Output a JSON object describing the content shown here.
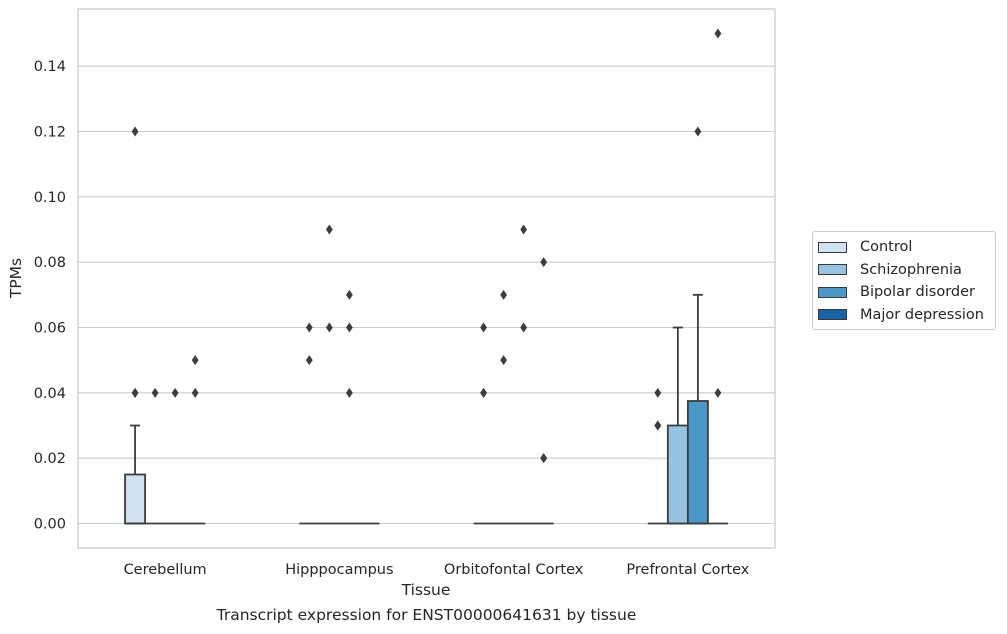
{
  "caption": "Transcript expression for ENST00000641631 by tissue",
  "chart_data": {
    "type": "box",
    "xlabel": "Tissue",
    "ylabel": "TPMs",
    "ylim": [
      -0.0075,
      0.1575
    ],
    "yticks": [
      0.0,
      0.02,
      0.04,
      0.06,
      0.08,
      0.1,
      0.12,
      0.14
    ],
    "ytick_labels": [
      "0.00",
      "0.02",
      "0.04",
      "0.06",
      "0.08",
      "0.10",
      "0.12",
      "0.14"
    ],
    "grid": true,
    "legend_position": "right",
    "categories": [
      "Cerebellum",
      "Hipppocampus",
      "Orbitofontal Cortex",
      "Prefrontal Cortex"
    ],
    "series": [
      {
        "name": "Control",
        "color": "#d0e1f2",
        "boxes": [
          {
            "q1": 0.0,
            "median": 0.0,
            "q3": 0.015,
            "whisker_low": 0.0,
            "whisker_high": 0.03,
            "outliers": [
              0.04,
              0.04,
              0.12
            ]
          },
          {
            "q1": 0.0,
            "median": 0.0,
            "q3": 0.0,
            "whisker_low": 0.0,
            "whisker_high": 0.0,
            "outliers": [
              0.05,
              0.06
            ]
          },
          {
            "q1": 0.0,
            "median": 0.0,
            "q3": 0.0,
            "whisker_low": 0.0,
            "whisker_high": 0.0,
            "outliers": [
              0.04,
              0.04,
              0.06
            ]
          },
          {
            "q1": 0.0,
            "median": 0.0,
            "q3": 0.0,
            "whisker_low": 0.0,
            "whisker_high": 0.0,
            "outliers": [
              0.03,
              0.03,
              0.04
            ]
          }
        ]
      },
      {
        "name": "Schizophrenia",
        "color": "#94c4df",
        "boxes": [
          {
            "q1": 0.0,
            "median": 0.0,
            "q3": 0.0,
            "whisker_low": 0.0,
            "whisker_high": 0.0,
            "outliers": [
              0.04
            ]
          },
          {
            "q1": 0.0,
            "median": 0.0,
            "q3": 0.0,
            "whisker_low": 0.0,
            "whisker_high": 0.0,
            "outliers": [
              0.06,
              0.09
            ]
          },
          {
            "q1": 0.0,
            "median": 0.0,
            "q3": 0.0,
            "whisker_low": 0.0,
            "whisker_high": 0.0,
            "outliers": [
              0.05,
              0.07
            ]
          },
          {
            "q1": 0.0,
            "median": 0.0,
            "q3": 0.03,
            "whisker_low": 0.0,
            "whisker_high": 0.06,
            "outliers": []
          }
        ]
      },
      {
        "name": "Bipolar disorder",
        "color": "#4a98c9",
        "boxes": [
          {
            "q1": 0.0,
            "median": 0.0,
            "q3": 0.0,
            "whisker_low": 0.0,
            "whisker_high": 0.0,
            "outliers": [
              0.04
            ]
          },
          {
            "q1": 0.0,
            "median": 0.0,
            "q3": 0.0,
            "whisker_low": 0.0,
            "whisker_high": 0.0,
            "outliers": [
              0.04,
              0.06,
              0.07
            ]
          },
          {
            "q1": 0.0,
            "median": 0.0,
            "q3": 0.0,
            "whisker_low": 0.0,
            "whisker_high": 0.0,
            "outliers": [
              0.06,
              0.09
            ]
          },
          {
            "q1": 0.0,
            "median": 0.0,
            "q3": 0.0375,
            "whisker_low": 0.0,
            "whisker_high": 0.07,
            "outliers": [
              0.12
            ]
          }
        ]
      },
      {
        "name": "Major depression",
        "color": "#1764ab",
        "boxes": [
          {
            "q1": 0.0,
            "median": 0.0,
            "q3": 0.0,
            "whisker_low": 0.0,
            "whisker_high": 0.0,
            "outliers": [
              0.05,
              0.04
            ]
          },
          {
            "q1": 0.0,
            "median": 0.0,
            "q3": 0.0,
            "whisker_low": 0.0,
            "whisker_high": 0.0,
            "outliers": []
          },
          {
            "q1": 0.0,
            "median": 0.0,
            "q3": 0.0,
            "whisker_low": 0.0,
            "whisker_high": 0.0,
            "outliers": [
              0.08,
              0.02,
              0.02
            ]
          },
          {
            "q1": 0.0,
            "median": 0.0,
            "q3": 0.0,
            "whisker_low": 0.0,
            "whisker_high": 0.0,
            "outliers": [
              0.04,
              0.15
            ]
          }
        ]
      }
    ]
  }
}
